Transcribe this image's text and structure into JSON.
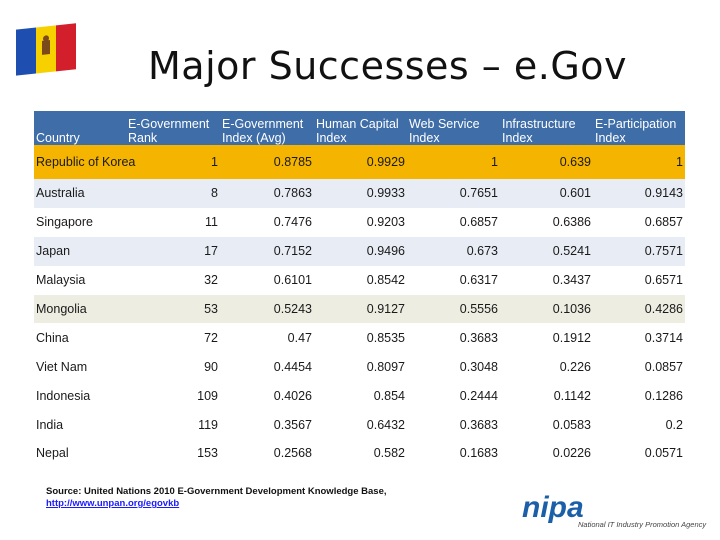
{
  "title": "Major Successes – e.Gov",
  "table": {
    "headers": [
      "Country",
      "E-Government Rank",
      "E-Government Index (Avg)",
      "Human Capital Index",
      "Web Service Index",
      "Infrastructure Index",
      "E-Participation Index"
    ],
    "rows": [
      [
        "Republic of Korea",
        "1",
        "0.8785",
        "0.9929",
        "1",
        "0.639",
        "1"
      ],
      [
        "Australia",
        "8",
        "0.7863",
        "0.9933",
        "0.7651",
        "0.601",
        "0.9143"
      ],
      [
        "Singapore",
        "11",
        "0.7476",
        "0.9203",
        "0.6857",
        "0.6386",
        "0.6857"
      ],
      [
        "Japan",
        "17",
        "0.7152",
        "0.9496",
        "0.673",
        "0.5241",
        "0.7571"
      ],
      [
        "Malaysia",
        "32",
        "0.6101",
        "0.8542",
        "0.6317",
        "0.3437",
        "0.6571"
      ],
      [
        "Mongolia",
        "53",
        "0.5243",
        "0.9127",
        "0.5556",
        "0.1036",
        "0.4286"
      ],
      [
        "China",
        "72",
        "0.47",
        "0.8535",
        "0.3683",
        "0.1912",
        "0.3714"
      ],
      [
        "Viet Nam",
        "90",
        "0.4454",
        "0.8097",
        "0.3048",
        "0.226",
        "0.0857"
      ],
      [
        "Indonesia",
        "109",
        "0.4026",
        "0.854",
        "0.2444",
        "0.1142",
        "0.1286"
      ],
      [
        "India",
        "119",
        "0.3567",
        "0.6432",
        "0.3683",
        "0.0583",
        "0.2"
      ],
      [
        "Nepal",
        "153",
        "0.2568",
        "0.582",
        "0.1683",
        "0.0226",
        "0.0571"
      ]
    ]
  },
  "source": {
    "text": "Source: United Nations 2010 E-Government Development Knowledge Base,",
    "link": "http://www.unpan.org/egovkb"
  },
  "logo": {
    "wordmark": "nipa",
    "tagline": "National IT Industry Promotion Agency"
  },
  "colors": {
    "header_bg": "#3E6DA8",
    "highlight_row": "#F5B400",
    "logo_blue": "#1B5FA8"
  }
}
